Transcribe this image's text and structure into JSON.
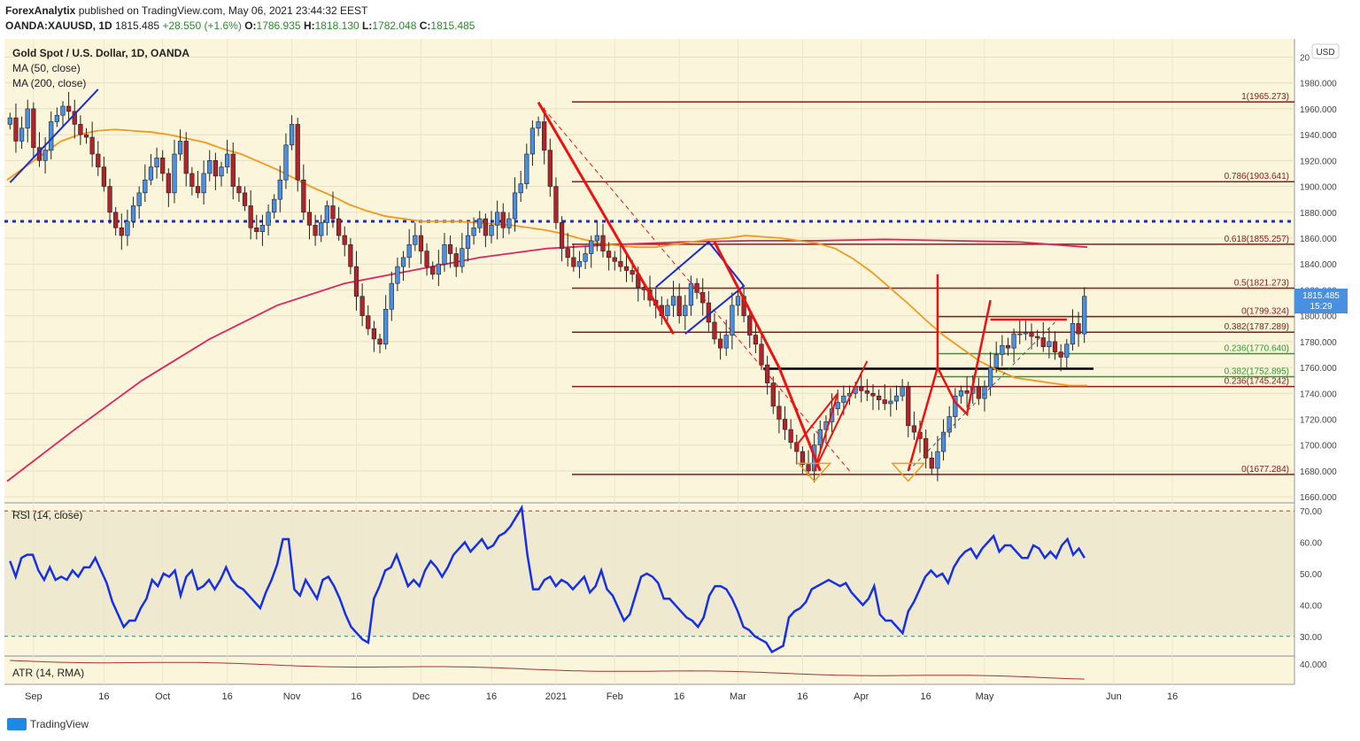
{
  "header": {
    "publisher": "ForexAnalytix",
    "published_text": "published on TradingView.com, May 06, 2021 23:44:32 EEST",
    "symbol": "OANDA:XAUUSD, 1D",
    "last": "1815.485",
    "change": "+28.550 (+1.6%)",
    "o_label": "O:",
    "o": "1786.935",
    "h_label": "H:",
    "h": "1818.130",
    "l_label": "L:",
    "l": "1782.048",
    "c_label": "C:",
    "c": "1815.485"
  },
  "legend": {
    "title": "Gold Spot / U.S. Dollar, 1D, OANDA",
    "ma50": "MA (50, close)",
    "ma200": "MA (200, close)",
    "rsi": "RSI (14, close)",
    "atr": "ATR (14, RMA)"
  },
  "currency_badge": "USD",
  "price_badge": {
    "value": "1815.485",
    "countdown": "15:29",
    "color": "#4a90e2"
  },
  "footer": {
    "brand": "TradingView"
  },
  "colors": {
    "bg": "#fbf5dc",
    "up": "#4a90e2",
    "down": "#b0232a",
    "ma50": "#f39a1c",
    "ma200": "#e0245e",
    "fib": "#8b1a1a",
    "rsi": "#1530e8",
    "pattern": "#ee1111"
  },
  "chart_data": {
    "type": "candlestick",
    "title": "Gold Spot / U.S. Dollar, 1D, OANDA",
    "x_ticks": [
      "Sep",
      "16",
      "Oct",
      "16",
      "Nov",
      "16",
      "Dec",
      "16",
      "2021",
      "Feb",
      "16",
      "Mar",
      "16",
      "Apr",
      "16",
      "May",
      "Jun",
      "16"
    ],
    "price_axis": {
      "ylim": [
        1656,
        2014
      ],
      "ticks": [
        "1660.000",
        "1680.000",
        "1700.000",
        "1720.000",
        "1740.000",
        "1760.000",
        "1780.000",
        "1800.000",
        "1820.000",
        "1840.000",
        "1860.000",
        "1880.000",
        "1900.000",
        "1920.000",
        "1940.000",
        "1960.000",
        "1980.000",
        "20"
      ]
    },
    "fib_levels": [
      {
        "label": "1(1965.273)",
        "value": 1965.273
      },
      {
        "label": "0.786(1903.641)",
        "value": 1903.641
      },
      {
        "label": "0.618(1855.257)",
        "value": 1855.257
      },
      {
        "label": "0.5(1821.273)",
        "value": 1821.273
      },
      {
        "label": "0(1799.324)",
        "value": 1799.324
      },
      {
        "label": "0.382(1787.289)",
        "value": 1787.289
      },
      {
        "label": "0.236(1770.640)",
        "value": 1770.64
      },
      {
        "label": "0.382(1752.895)",
        "value": 1752.895
      },
      {
        "label": "0.236(1745.242)",
        "value": 1745.242
      },
      {
        "label": "0(1677.284)",
        "value": 1677.284
      }
    ],
    "support_line": 1873,
    "neckline": 1759,
    "closes": [
      1953,
      1935,
      1945,
      1960,
      1930,
      1920,
      1928,
      1950,
      1955,
      1962,
      1958,
      1948,
      1940,
      1938,
      1925,
      1915,
      1900,
      1880,
      1868,
      1862,
      1873,
      1885,
      1895,
      1905,
      1915,
      1922,
      1910,
      1895,
      1925,
      1935,
      1910,
      1900,
      1895,
      1910,
      1920,
      1908,
      1915,
      1925,
      1900,
      1895,
      1885,
      1868,
      1865,
      1870,
      1880,
      1890,
      1905,
      1932,
      1948,
      1905,
      1880,
      1870,
      1862,
      1872,
      1885,
      1875,
      1862,
      1855,
      1838,
      1815,
      1800,
      1790,
      1782,
      1778,
      1805,
      1825,
      1838,
      1845,
      1855,
      1862,
      1850,
      1838,
      1832,
      1840,
      1855,
      1848,
      1838,
      1852,
      1862,
      1868,
      1875,
      1862,
      1870,
      1880,
      1868,
      1875,
      1895,
      1902,
      1925,
      1945,
      1950,
      1928,
      1900,
      1872,
      1852,
      1845,
      1838,
      1842,
      1848,
      1858,
      1862,
      1850,
      1845,
      1842,
      1838,
      1835,
      1832,
      1822,
      1820,
      1812,
      1808,
      1800,
      1808,
      1815,
      1800,
      1808,
      1825,
      1818,
      1810,
      1795,
      1782,
      1775,
      1785,
      1808,
      1815,
      1800,
      1785,
      1778,
      1762,
      1748,
      1730,
      1720,
      1712,
      1702,
      1695,
      1685,
      1680,
      1700,
      1712,
      1718,
      1728,
      1733,
      1738,
      1740,
      1745,
      1742,
      1740,
      1738,
      1735,
      1732,
      1734,
      1738,
      1745,
      1715,
      1710,
      1705,
      1690,
      1682,
      1695,
      1710,
      1722,
      1738,
      1742,
      1740,
      1745,
      1736,
      1745,
      1760,
      1770,
      1777,
      1775,
      1786,
      1786,
      1787,
      1784,
      1783,
      1776,
      1780,
      1772,
      1768,
      1778,
      1794,
      1786,
      1815
    ],
    "ma50": [
      1905,
      1915,
      1925,
      1935,
      1940,
      1943,
      1944,
      1943,
      1942,
      1940,
      1937,
      1934,
      1929,
      1925,
      1919,
      1913,
      1906,
      1899,
      1893,
      1886,
      1881,
      1877,
      1875,
      1873,
      1873,
      1873,
      1872,
      1871,
      1870,
      1868,
      1866,
      1863,
      1859,
      1856,
      1854,
      1853,
      1853,
      1855,
      1857,
      1859,
      1860,
      1862,
      1861,
      1860,
      1858,
      1856,
      1852,
      1844,
      1834,
      1822,
      1810,
      1797,
      1785,
      1775,
      1765,
      1758,
      1752,
      1750,
      1748,
      1746,
      1746
    ],
    "ma200": [
      1672,
      1712,
      1750,
      1782,
      1808,
      1825,
      1835,
      1845,
      1852,
      1855,
      1857,
      1858,
      1858,
      1859,
      1858,
      1857,
      1853
    ],
    "rsi_axis": {
      "ylim": [
        24,
        72
      ],
      "ticks": [
        "30.00",
        "40.00",
        "50.00",
        "60.00",
        "70.00"
      ],
      "bands": [
        30,
        70
      ]
    },
    "rsi": [
      54,
      49,
      55,
      56,
      56,
      51,
      48,
      52,
      48,
      49,
      48,
      51,
      49,
      52,
      52,
      55,
      51,
      47,
      41,
      37,
      33,
      35,
      35,
      39,
      42,
      48,
      46,
      50,
      49,
      51,
      43,
      49,
      51,
      45,
      46,
      48,
      45,
      48,
      52,
      48,
      46,
      45,
      43,
      41,
      39,
      44,
      48,
      53,
      61,
      61,
      45,
      43,
      48,
      45,
      42,
      48,
      49,
      46,
      42,
      37,
      33,
      31,
      29,
      28,
      42,
      46,
      51,
      52,
      56,
      51,
      46,
      48,
      46,
      51,
      54,
      52,
      49,
      52,
      56,
      58,
      60,
      57,
      59,
      61,
      58,
      59,
      62,
      63,
      65,
      68,
      71,
      56,
      45,
      45,
      48,
      49,
      46,
      48,
      47,
      45,
      47,
      49,
      44,
      46,
      51,
      45,
      43,
      39,
      35,
      37,
      43,
      49,
      50,
      49,
      47,
      42,
      42,
      40,
      38,
      36,
      35,
      33,
      36,
      43,
      46,
      46,
      45,
      42,
      38,
      33,
      32,
      30,
      29,
      28,
      25,
      26,
      27,
      36,
      38,
      39,
      41,
      45,
      46,
      47,
      48,
      47,
      46,
      47,
      44,
      42,
      40,
      42,
      46,
      37,
      35,
      35,
      33,
      31,
      38,
      41,
      45,
      49,
      51,
      49,
      50,
      47,
      52,
      55,
      57,
      58,
      55,
      58,
      60,
      62,
      57,
      59,
      59,
      57,
      55,
      55,
      59,
      58,
      55,
      57,
      55,
      59,
      61,
      56,
      58,
      55
    ],
    "atr_axis": {
      "ticks": [
        "40.000"
      ]
    }
  }
}
